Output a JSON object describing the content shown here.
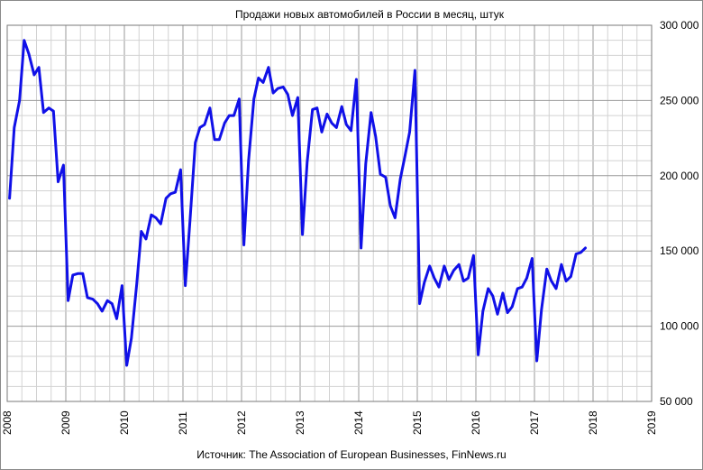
{
  "chart_data": {
    "type": "line",
    "title": "Продажи новых автомобилей в России в месяц, штук",
    "source": "Источник: The Association of European Businesses, FinNews.ru",
    "x_tick_labels": [
      "2008",
      "2009",
      "2010",
      "2011",
      "2012",
      "2013",
      "2014",
      "2015",
      "2016",
      "2017",
      "2018",
      "2019"
    ],
    "y_tick_labels": [
      "50 000",
      "100 000",
      "150 000",
      "200 000",
      "250 000",
      "300 000"
    ],
    "xlim": [
      2008,
      2019
    ],
    "ylim": [
      50000,
      300000
    ],
    "y_axis_position": "right",
    "grid": true,
    "series_color": "#1010e8",
    "series": [
      {
        "values": [
          [
            2008.04,
            185000
          ],
          [
            2008.12,
            232000
          ],
          [
            2008.21,
            250000
          ],
          [
            2008.29,
            290000
          ],
          [
            2008.37,
            281000
          ],
          [
            2008.46,
            267000
          ],
          [
            2008.54,
            272000
          ],
          [
            2008.62,
            242000
          ],
          [
            2008.71,
            245000
          ],
          [
            2008.79,
            243000
          ],
          [
            2008.87,
            196000
          ],
          [
            2008.96,
            207000
          ],
          [
            2009.04,
            117000
          ],
          [
            2009.12,
            134000
          ],
          [
            2009.21,
            135000
          ],
          [
            2009.29,
            135000
          ],
          [
            2009.37,
            119000
          ],
          [
            2009.46,
            118000
          ],
          [
            2009.54,
            115000
          ],
          [
            2009.62,
            110000
          ],
          [
            2009.71,
            117000
          ],
          [
            2009.79,
            115000
          ],
          [
            2009.87,
            105000
          ],
          [
            2009.96,
            127000
          ],
          [
            2010.04,
            74000
          ],
          [
            2010.12,
            92000
          ],
          [
            2010.21,
            128000
          ],
          [
            2010.29,
            163000
          ],
          [
            2010.37,
            158000
          ],
          [
            2010.46,
            174000
          ],
          [
            2010.54,
            172000
          ],
          [
            2010.62,
            168000
          ],
          [
            2010.71,
            185000
          ],
          [
            2010.79,
            188000
          ],
          [
            2010.87,
            189000
          ],
          [
            2010.96,
            204000
          ],
          [
            2011.04,
            127000
          ],
          [
            2011.12,
            170000
          ],
          [
            2011.21,
            222000
          ],
          [
            2011.29,
            232000
          ],
          [
            2011.37,
            234000
          ],
          [
            2011.46,
            245000
          ],
          [
            2011.54,
            224000
          ],
          [
            2011.62,
            224000
          ],
          [
            2011.71,
            235000
          ],
          [
            2011.79,
            240000
          ],
          [
            2011.87,
            240000
          ],
          [
            2011.96,
            251000
          ],
          [
            2012.04,
            154000
          ],
          [
            2012.12,
            210000
          ],
          [
            2012.21,
            251000
          ],
          [
            2012.29,
            265000
          ],
          [
            2012.37,
            262000
          ],
          [
            2012.46,
            272000
          ],
          [
            2012.54,
            255000
          ],
          [
            2012.62,
            258000
          ],
          [
            2012.71,
            259000
          ],
          [
            2012.79,
            254000
          ],
          [
            2012.87,
            240000
          ],
          [
            2012.96,
            252000
          ],
          [
            2013.04,
            161000
          ],
          [
            2013.12,
            209000
          ],
          [
            2013.21,
            244000
          ],
          [
            2013.29,
            245000
          ],
          [
            2013.37,
            229000
          ],
          [
            2013.46,
            241000
          ],
          [
            2013.54,
            235000
          ],
          [
            2013.62,
            232000
          ],
          [
            2013.71,
            246000
          ],
          [
            2013.79,
            234000
          ],
          [
            2013.87,
            230000
          ],
          [
            2013.96,
            264000
          ],
          [
            2014.04,
            152000
          ],
          [
            2014.12,
            208000
          ],
          [
            2014.21,
            242000
          ],
          [
            2014.29,
            226000
          ],
          [
            2014.37,
            201000
          ],
          [
            2014.46,
            199000
          ],
          [
            2014.54,
            180000
          ],
          [
            2014.62,
            172000
          ],
          [
            2014.71,
            198000
          ],
          [
            2014.79,
            213000
          ],
          [
            2014.87,
            229000
          ],
          [
            2014.96,
            270000
          ],
          [
            2015.04,
            115000
          ],
          [
            2015.12,
            129000
          ],
          [
            2015.21,
            140000
          ],
          [
            2015.29,
            132000
          ],
          [
            2015.37,
            126000
          ],
          [
            2015.46,
            140000
          ],
          [
            2015.54,
            131000
          ],
          [
            2015.62,
            137000
          ],
          [
            2015.71,
            141000
          ],
          [
            2015.79,
            130000
          ],
          [
            2015.87,
            132000
          ],
          [
            2015.96,
            147000
          ],
          [
            2016.04,
            81000
          ],
          [
            2016.12,
            110000
          ],
          [
            2016.21,
            125000
          ],
          [
            2016.29,
            120000
          ],
          [
            2016.37,
            108000
          ],
          [
            2016.46,
            122000
          ],
          [
            2016.54,
            109000
          ],
          [
            2016.62,
            113000
          ],
          [
            2016.71,
            125000
          ],
          [
            2016.79,
            126000
          ],
          [
            2016.87,
            132000
          ],
          [
            2016.96,
            145000
          ],
          [
            2017.04,
            77000
          ],
          [
            2017.12,
            111000
          ],
          [
            2017.21,
            138000
          ],
          [
            2017.29,
            130000
          ],
          [
            2017.37,
            125000
          ],
          [
            2017.46,
            141000
          ],
          [
            2017.54,
            130000
          ],
          [
            2017.62,
            133000
          ],
          [
            2017.71,
            148000
          ],
          [
            2017.79,
            149000
          ],
          [
            2017.87,
            152000
          ]
        ]
      }
    ]
  }
}
